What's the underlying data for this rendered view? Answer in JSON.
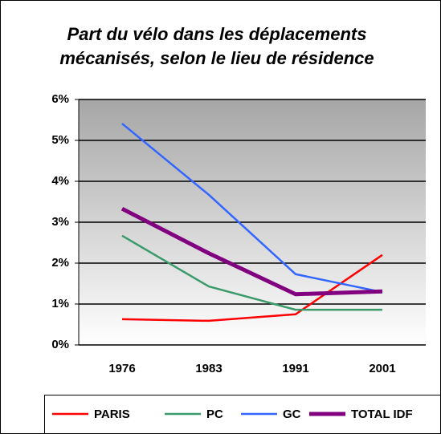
{
  "chart_data": {
    "type": "line",
    "title": "Part du vélo dans les déplacements mécanisés, selon le lieu de résidence",
    "categories": [
      "1976",
      "1983",
      "1991",
      "2001"
    ],
    "series": [
      {
        "name": "PARIS",
        "color": "#ff0000",
        "values": [
          0.63,
          0.59,
          0.75,
          2.2
        ]
      },
      {
        "name": "PC",
        "color": "#3a9a6a",
        "values": [
          2.67,
          1.43,
          0.86,
          0.86
        ]
      },
      {
        "name": "GC",
        "color": "#3366ff",
        "values": [
          5.41,
          3.67,
          1.73,
          1.29
        ]
      },
      {
        "name": "TOTAL IDF",
        "color": "#800080",
        "values": [
          3.33,
          2.24,
          1.24,
          1.31
        ]
      }
    ],
    "ylim": [
      0,
      6
    ],
    "yticks": [
      {
        "value": 0,
        "label": "0%"
      },
      {
        "value": 1,
        "label": "1%"
      },
      {
        "value": 2,
        "label": "2%"
      },
      {
        "value": 3,
        "label": "3%"
      },
      {
        "value": 4,
        "label": "4%"
      },
      {
        "value": 5,
        "label": "5%"
      },
      {
        "value": 6,
        "label": "6%"
      }
    ],
    "grid": true,
    "legend": "bottom"
  }
}
